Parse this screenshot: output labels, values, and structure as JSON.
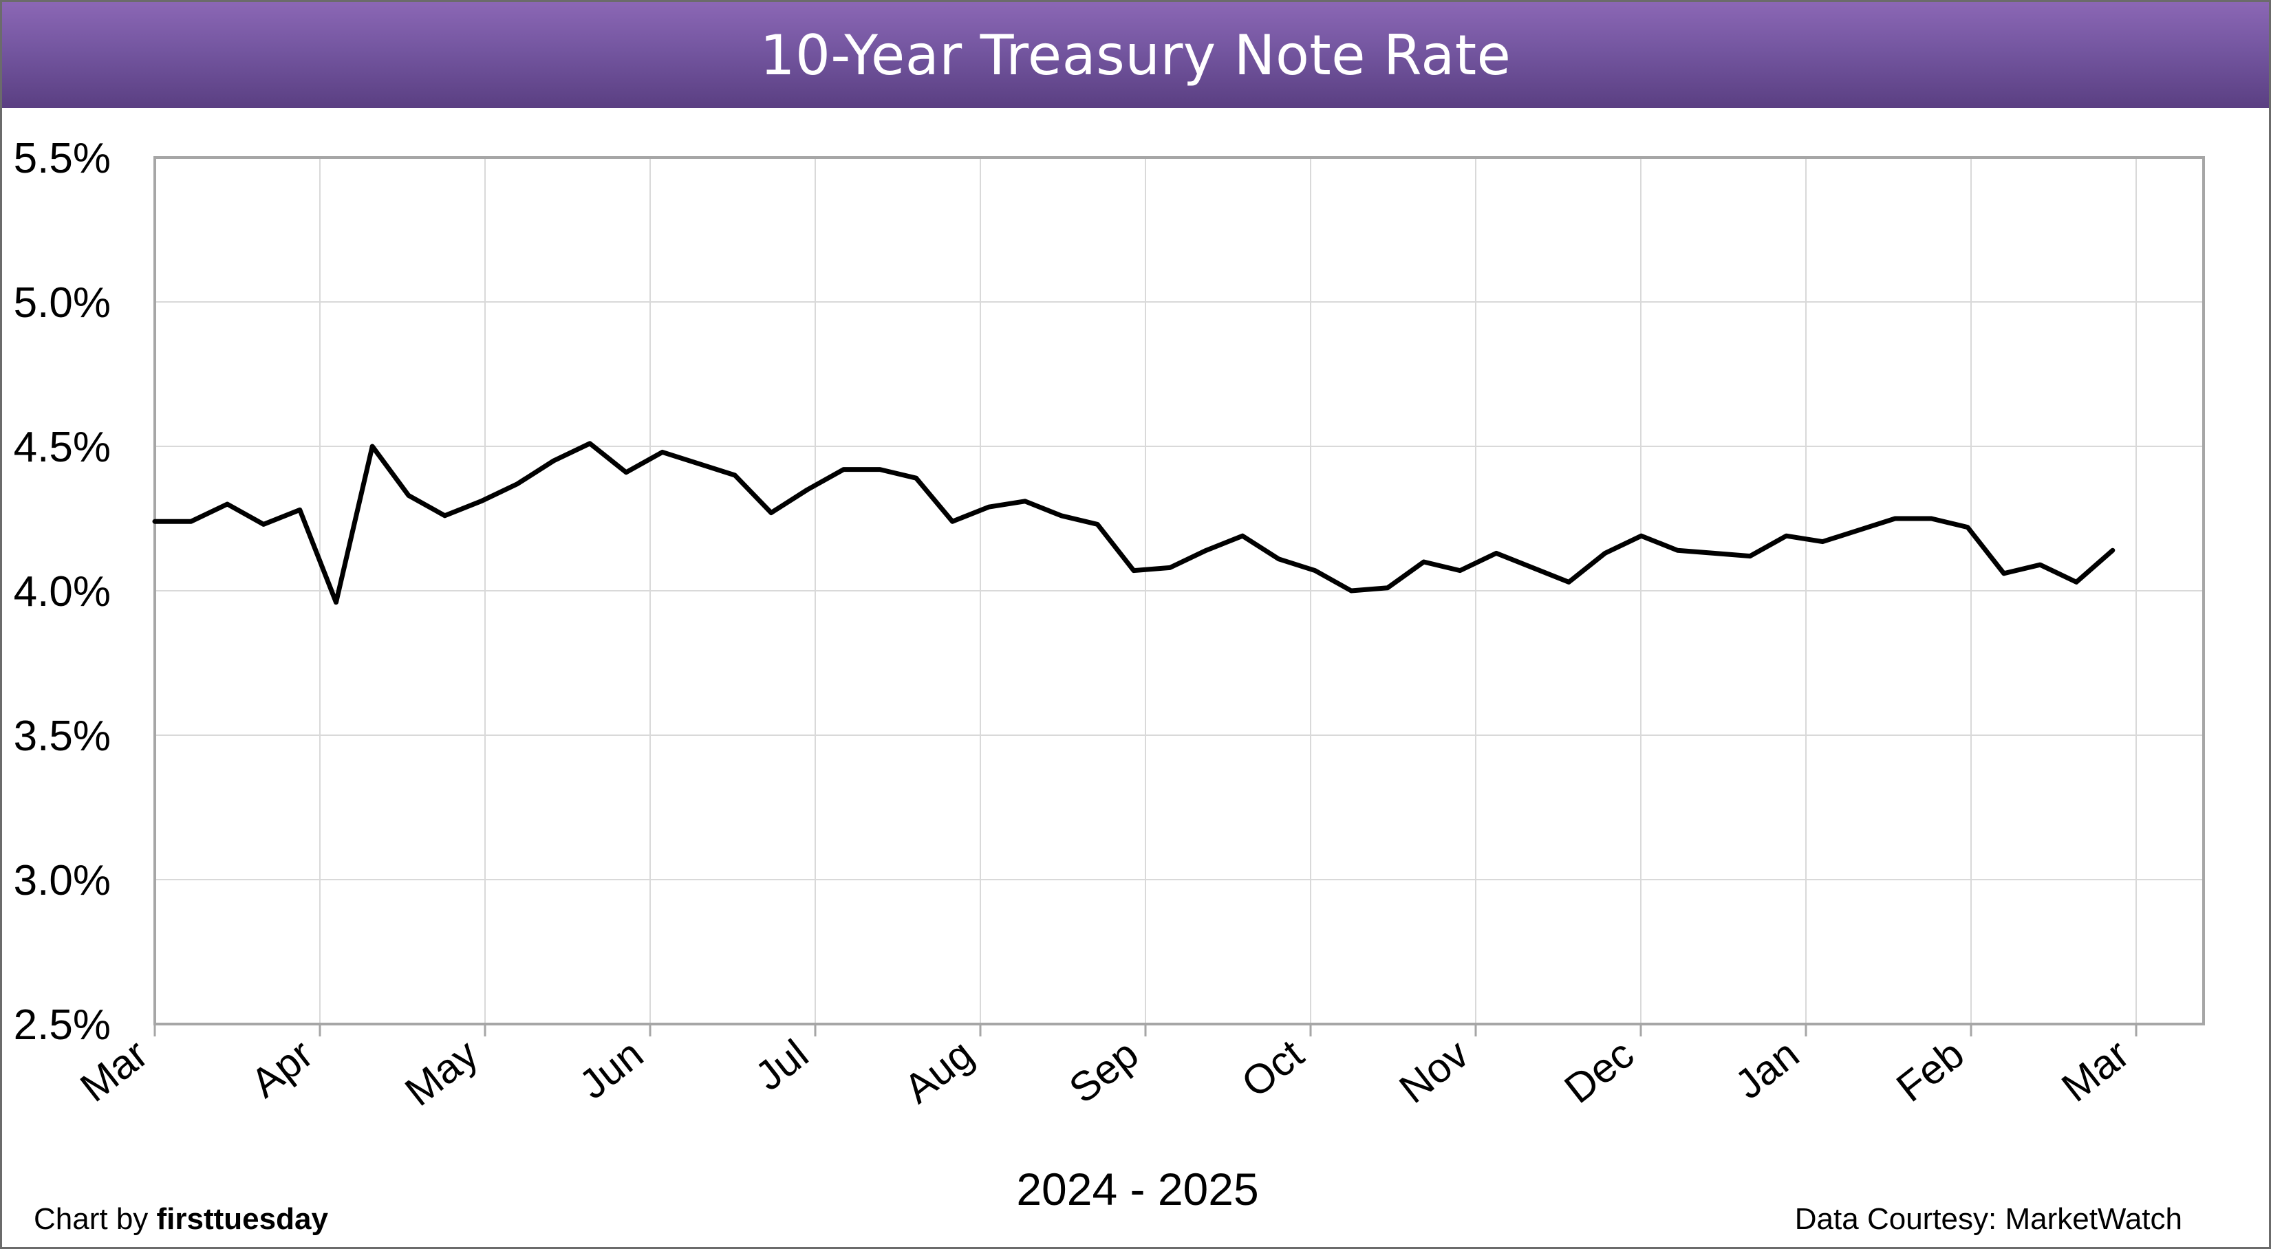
{
  "chart_data": {
    "type": "line",
    "title": "10-Year Treasury Note Rate",
    "xlabel": "2024 - 2025",
    "ylabel": "",
    "ylim": [
      2.5,
      5.5
    ],
    "yticks": [
      2.5,
      3.0,
      3.5,
      4.0,
      4.5,
      5.0,
      5.5
    ],
    "ytick_labels": [
      "2.5%",
      "3.0%",
      "3.5%",
      "4.0%",
      "4.5%",
      "5.0%",
      "5.5%"
    ],
    "xtick_labels": [
      "Mar",
      "Apr",
      "May",
      "Jun",
      "Jul",
      "Aug",
      "Sep",
      "Oct",
      "Nov",
      "Dec",
      "Jan",
      "Feb",
      "Mar"
    ],
    "grid": true,
    "series": [
      {
        "color": "#000000",
        "values": [
          4.24,
          4.24,
          4.3,
          4.23,
          4.28,
          3.96,
          4.5,
          4.33,
          4.26,
          4.31,
          4.37,
          4.45,
          4.51,
          4.41,
          4.48,
          4.44,
          4.4,
          4.27,
          4.35,
          4.42,
          4.42,
          4.39,
          4.24,
          4.29,
          4.31,
          4.26,
          4.23,
          4.07,
          4.08,
          4.14,
          4.19,
          4.11,
          4.07,
          4.0,
          4.01,
          4.1,
          4.07,
          4.13,
          4.08,
          4.03,
          4.13,
          4.19,
          4.14,
          4.13,
          4.12,
          4.19,
          4.17,
          4.21,
          4.25,
          4.25,
          4.22,
          4.06,
          4.09,
          4.03,
          4.14
        ]
      }
    ]
  },
  "footer": {
    "credit_prefix": "Chart by ",
    "credit_brand": "firsttuesday",
    "source": "Data Courtesy: MarketWatch"
  },
  "colors": {
    "title_bar_top": "#8b67b5",
    "title_bar_bottom": "#5a3f82",
    "grid": "#d9d9d9",
    "axis": "#a6a6a6",
    "line": "#000000"
  }
}
